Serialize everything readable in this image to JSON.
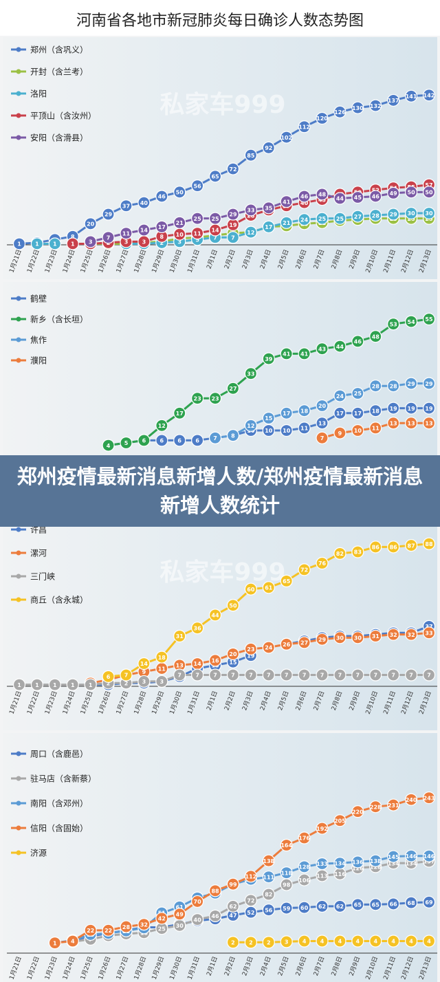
{
  "title": "河南省各地市新冠肺炎每日确诊人数态势图",
  "overlay_title": "郑州疫情最新消息新增人数/郑州疫情最新消息新增人数统计",
  "watermark": "私家车999",
  "colors": {
    "blue": "#4d7cc7",
    "olive": "#9bc044",
    "teal": "#4bb0cf",
    "red": "#c9404a",
    "purple": "#7b5aa6",
    "green": "#2ea24f",
    "lightblue": "#5b9bd5",
    "orange": "#ec7c3c",
    "gray": "#a8a8a8",
    "gold": "#f5c224"
  },
  "chart_data": [
    {
      "type": "line",
      "categories": [
        "1月21日",
        "1月22日",
        "1月23日",
        "1月24日",
        "1月25日",
        "1月26日",
        "1月27日",
        "1月28日",
        "1月29日",
        "1月30日",
        "1月31日",
        "2月1日",
        "2月2日",
        "2月3日",
        "2月4日",
        "2月5日",
        "2月6日",
        "2月7日",
        "2月8日",
        "2月9日",
        "2月10日",
        "2月11日",
        "2月12日",
        "2月13日"
      ],
      "series": [
        {
          "name": "郑州（含巩义）",
          "color": "blue",
          "values": [
            1,
            2,
            5,
            8,
            20,
            29,
            37,
            40,
            46,
            50,
            56,
            65,
            72,
            85,
            92,
            102,
            112,
            120,
            126,
            130,
            132,
            137,
            141,
            142
          ]
        },
        {
          "name": "开封（含兰考）",
          "color": "olive",
          "values": [
            null,
            null,
            null,
            null,
            1,
            1,
            1,
            2,
            3,
            6,
            7,
            9,
            11,
            12,
            17,
            18,
            20,
            21,
            23,
            24,
            25,
            25,
            25,
            25
          ]
        },
        {
          "name": "洛阳",
          "color": "teal",
          "values": [
            null,
            1,
            1,
            null,
            null,
            null,
            1,
            1,
            2,
            3,
            5,
            7,
            7,
            12,
            17,
            21,
            24,
            25,
            25,
            27,
            28,
            29,
            30,
            30
          ]
        },
        {
          "name": "平顶山（含汝州）",
          "color": "red",
          "values": [
            null,
            null,
            null,
            1,
            1,
            2,
            3,
            3,
            8,
            10,
            11,
            14,
            19,
            28,
            33,
            37,
            40,
            43,
            48,
            50,
            52,
            54,
            55,
            57
          ]
        },
        {
          "name": "安阳（含滑县）",
          "color": "purple",
          "values": [
            null,
            null,
            null,
            null,
            3,
            7,
            11,
            14,
            17,
            21,
            25,
            25,
            29,
            33,
            35,
            41,
            46,
            48,
            44,
            45,
            46,
            49,
            50,
            50
          ]
        }
      ],
      "ylim": [
        0,
        150
      ]
    },
    {
      "type": "line",
      "categories": [
        "1月21日",
        "1月22日",
        "1月23日",
        "1月24日",
        "1月25日",
        "1月26日",
        "1月27日",
        "1月28日",
        "1月29日",
        "1月30日",
        "1月31日",
        "2月1日",
        "2月2日",
        "2月3日",
        "2月4日",
        "2月5日",
        "2月6日",
        "2月7日",
        "2月8日",
        "2月9日",
        "2月10日",
        "2月11日",
        "2月12日",
        "2月13日"
      ],
      "series": [
        {
          "name": "鹤壁",
          "color": "blue",
          "values": [
            null,
            null,
            null,
            null,
            null,
            4,
            5,
            6,
            6,
            6,
            6,
            7,
            8,
            10,
            10,
            10,
            11,
            13,
            17,
            17,
            18,
            19,
            19,
            19
          ]
        },
        {
          "name": "新乡（含长垣）",
          "color": "green",
          "values": [
            null,
            null,
            null,
            null,
            null,
            4,
            5,
            6,
            12,
            17,
            23,
            23,
            27,
            33,
            39,
            41,
            41,
            43,
            44,
            46,
            48,
            53,
            54,
            55
          ]
        },
        {
          "name": "焦作",
          "color": "lightblue",
          "values": [
            null,
            null,
            null,
            null,
            null,
            null,
            null,
            null,
            null,
            null,
            null,
            7,
            8,
            12,
            15,
            17,
            18,
            20,
            24,
            25,
            28,
            28,
            29,
            29
          ]
        },
        {
          "name": "濮阳",
          "color": "orange",
          "values": [
            null,
            null,
            null,
            null,
            null,
            null,
            null,
            null,
            null,
            null,
            null,
            null,
            null,
            null,
            null,
            null,
            null,
            7,
            9,
            10,
            11,
            13,
            13,
            13
          ]
        }
      ],
      "ylim": [
        0,
        60
      ]
    },
    {
      "type": "line",
      "categories": [
        "1月21日",
        "1月22日",
        "1月23日",
        "1月24日",
        "1月25日",
        "1月26日",
        "1月27日",
        "1月28日",
        "1月29日",
        "1月30日",
        "1月31日",
        "2月1日",
        "2月2日",
        "2月3日",
        "2月4日",
        "2月5日",
        "2月6日",
        "2月7日",
        "2月8日",
        "2月9日",
        "2月10日",
        "2月11日",
        "2月12日",
        "2月13日"
      ],
      "series": [
        {
          "name": "许昌",
          "color": "blue",
          "values": [
            null,
            null,
            null,
            null,
            1,
            1,
            2,
            2,
            3,
            6,
            11,
            13,
            15,
            19,
            null,
            26,
            28,
            30,
            31,
            31,
            32,
            33,
            33,
            37
          ]
        },
        {
          "name": "漯河",
          "color": "orange",
          "values": [
            null,
            null,
            null,
            null,
            2,
            4,
            7,
            9,
            11,
            13,
            14,
            16,
            20,
            23,
            24,
            26,
            27,
            29,
            30,
            30,
            31,
            32,
            32,
            33
          ]
        },
        {
          "name": "三门峡",
          "color": "gray",
          "values": [
            1,
            1,
            1,
            1,
            1,
            2,
            2,
            3,
            3,
            7,
            7,
            7,
            7,
            7,
            7,
            7,
            7,
            7,
            7,
            7,
            7,
            7,
            7,
            7
          ]
        },
        {
          "name": "商丘（含永城）",
          "color": "gold",
          "values": [
            null,
            null,
            null,
            null,
            null,
            6,
            7,
            14,
            18,
            31,
            36,
            44,
            50,
            60,
            61,
            65,
            72,
            76,
            82,
            83,
            86,
            86,
            87,
            88
          ]
        }
      ],
      "ylim": [
        0,
        90
      ]
    },
    {
      "type": "line",
      "categories": [
        "1月21日",
        "1月22日",
        "1月23日",
        "1月24日",
        "1月25日",
        "1月26日",
        "1月27日",
        "1月28日",
        "1月29日",
        "1月30日",
        "1月31日",
        "2月1日",
        "2月2日",
        "2月3日",
        "2月4日",
        "2月5日",
        "2月6日",
        "2月7日",
        "2月8日",
        "2月9日",
        "2月10日",
        "2月11日",
        "2月12日",
        "2月13日"
      ],
      "series": [
        {
          "name": "周口（含鹿邑）",
          "color": "blue",
          "values": [
            null,
            null,
            1,
            5,
            12,
            17,
            22,
            27,
            27,
            32,
            38,
            41,
            47,
            52,
            56,
            59,
            60,
            62,
            62,
            65,
            65,
            66,
            68,
            69
          ]
        },
        {
          "name": "驻马店（含新蔡）",
          "color": "gray",
          "values": [
            null,
            null,
            null,
            3,
            7,
            13,
            16,
            18,
            25,
            30,
            40,
            46,
            62,
            72,
            82,
            98,
            106,
            113,
            116,
            126,
            128,
            134,
            134,
            137
          ]
        },
        {
          "name": "南阳（含邓州）",
          "color": "lightblue",
          "values": [
            null,
            null,
            null,
            5,
            15,
            17,
            21,
            26,
            51,
            61,
            76,
            84,
            99,
            107,
            111,
            118,
            128,
            133,
            134,
            136,
            138,
            145,
            146,
            146
          ]
        },
        {
          "name": "信阳（含固始）",
          "color": "orange",
          "values": [
            null,
            null,
            1,
            4,
            22,
            22,
            28,
            32,
            42,
            49,
            70,
            88,
            99,
            112,
            138,
            164,
            176,
            192,
            205,
            220,
            228,
            231,
            240,
            243
          ]
        },
        {
          "name": "济源",
          "color": "gold",
          "values": [
            null,
            null,
            null,
            null,
            null,
            null,
            null,
            null,
            null,
            null,
            null,
            null,
            2,
            2,
            2,
            3,
            4,
            4,
            4,
            4,
            4,
            4,
            4,
            4
          ]
        }
      ],
      "ylim": [
        0,
        250
      ]
    }
  ]
}
